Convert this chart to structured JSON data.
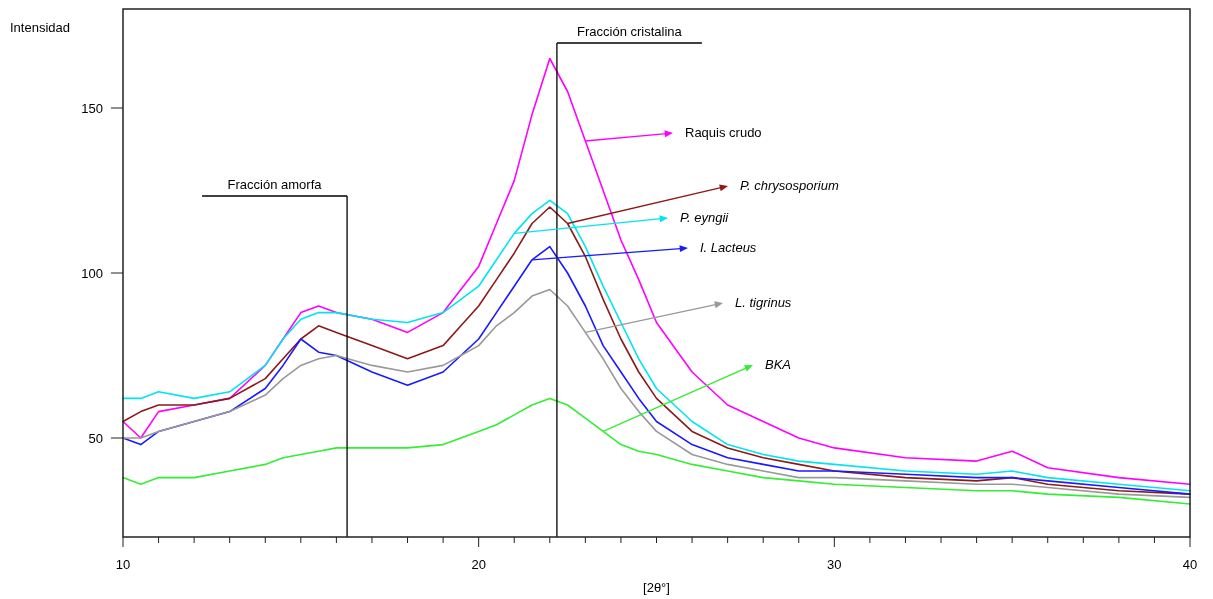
{
  "chart_data": {
    "type": "line",
    "ylabel": "Intensidad",
    "xlabel": "[2θ°]",
    "x": [
      10,
      10.5,
      11,
      12,
      13,
      14,
      14.5,
      15,
      15.5,
      16,
      17,
      18,
      19,
      19.5,
      20,
      20.5,
      21,
      21.5,
      22,
      22.5,
      23,
      23.5,
      24,
      24.5,
      25,
      26,
      27,
      28,
      29,
      30,
      32,
      34,
      35,
      36,
      38,
      40
    ],
    "series": [
      {
        "name": "Raquis crudo",
        "color": "#ff00ff",
        "values": [
          55,
          50,
          58,
          60,
          62,
          72,
          80,
          88,
          90,
          88,
          86,
          82,
          88,
          95,
          102,
          115,
          128,
          148,
          165,
          155,
          140,
          125,
          110,
          98,
          85,
          70,
          60,
          55,
          50,
          47,
          44,
          43,
          46,
          41,
          38,
          36
        ]
      },
      {
        "name": "P. chrysosporium",
        "color": "#8b1a1a",
        "values": [
          55,
          58,
          60,
          60,
          62,
          68,
          74,
          80,
          84,
          82,
          78,
          74,
          78,
          84,
          90,
          98,
          106,
          115,
          120,
          115,
          105,
          92,
          80,
          70,
          62,
          52,
          47,
          44,
          42,
          40,
          38,
          37,
          38,
          36,
          34,
          33
        ]
      },
      {
        "name": "P. eyngii",
        "color": "#00e5ee",
        "values": [
          62,
          62,
          64,
          62,
          64,
          72,
          80,
          86,
          88,
          88,
          86,
          85,
          88,
          92,
          96,
          104,
          112,
          118,
          122,
          118,
          108,
          96,
          85,
          74,
          65,
          55,
          48,
          45,
          43,
          42,
          40,
          39,
          40,
          38,
          36,
          34
        ]
      },
      {
        "name": "I. Lacteus",
        "color": "#1a1aff",
        "values": [
          50,
          48,
          52,
          55,
          58,
          65,
          72,
          80,
          76,
          75,
          70,
          66,
          70,
          75,
          80,
          88,
          96,
          104,
          108,
          100,
          90,
          78,
          70,
          62,
          55,
          48,
          44,
          42,
          40,
          40,
          39,
          38,
          38,
          37,
          35,
          33
        ]
      },
      {
        "name": "L. tigrinus",
        "color": "#999999",
        "values": [
          50,
          50,
          52,
          55,
          58,
          63,
          68,
          72,
          74,
          75,
          72,
          70,
          72,
          75,
          78,
          84,
          88,
          93,
          95,
          90,
          82,
          74,
          65,
          58,
          52,
          45,
          42,
          40,
          38,
          38,
          37,
          36,
          36,
          35,
          33,
          32
        ]
      },
      {
        "name": "BKA",
        "color": "#33ee33",
        "values": [
          38,
          36,
          38,
          38,
          40,
          42,
          44,
          45,
          46,
          47,
          47,
          47,
          48,
          50,
          52,
          54,
          57,
          60,
          62,
          60,
          56,
          52,
          48,
          46,
          45,
          42,
          40,
          38,
          37,
          36,
          35,
          34,
          34,
          33,
          32,
          30
        ]
      }
    ],
    "xlim": [
      10,
      40
    ],
    "ylim": [
      20,
      180
    ],
    "xticks": [
      10,
      {
        "value": 11,
        "label": null
      },
      {
        "value": 12,
        "label": null
      },
      {
        "value": 13,
        "label": null
      },
      {
        "value": 14,
        "label": null
      },
      {
        "value": 15,
        "label": null
      },
      {
        "value": 16,
        "label": null
      },
      {
        "value": 17,
        "label": null
      },
      {
        "value": 18,
        "label": null
      },
      {
        "value": 19,
        "label": null
      },
      20,
      {
        "value": 21,
        "label": null
      },
      {
        "value": 22,
        "label": null
      },
      {
        "value": 23,
        "label": null
      },
      {
        "value": 24,
        "label": null
      },
      {
        "value": 25,
        "label": null
      },
      {
        "value": 26,
        "label": null
      },
      {
        "value": 27,
        "label": null
      },
      {
        "value": 28,
        "label": null
      },
      {
        "value": 29,
        "label": null
      },
      30,
      {
        "value": 31,
        "label": null
      },
      {
        "value": 32,
        "label": null
      },
      {
        "value": 33,
        "label": null
      },
      {
        "value": 34,
        "label": null
      },
      {
        "value": 35,
        "label": null
      },
      {
        "value": 36,
        "label": null
      },
      {
        "value": 37,
        "label": null
      },
      {
        "value": 38,
        "label": null
      },
      {
        "value": 39,
        "label": null
      },
      40
    ],
    "yticks": [
      50,
      100,
      150
    ],
    "ref_lines": [
      {
        "axis": "x",
        "value": 16.3,
        "label": "Fracción amorfa",
        "color": "#000000"
      },
      {
        "axis": "x",
        "value": 22.2,
        "label": "Fracción cristalina",
        "color": "#000000"
      }
    ],
    "grid": false,
    "legend": "right",
    "marker": "none",
    "line_style": "solid"
  }
}
